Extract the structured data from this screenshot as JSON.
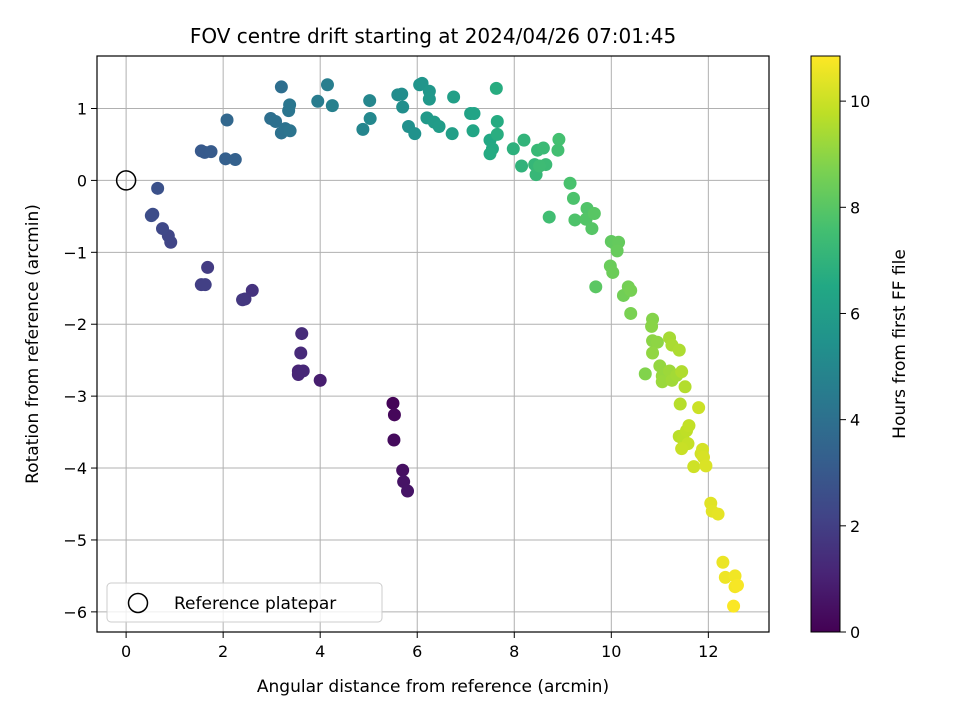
{
  "chart_data": {
    "type": "scatter",
    "title": "FOV centre drift starting at 2024/04/26 07:01:45",
    "xlabel": "Angular distance from reference (arcmin)",
    "ylabel": "Rotation from reference (arcmin)",
    "xlim": [
      -0.6,
      13.25
    ],
    "ylim": [
      -6.28,
      1.73
    ],
    "xticks": [
      0,
      2,
      4,
      6,
      8,
      10,
      12
    ],
    "yticks": [
      -6,
      -5,
      -4,
      -3,
      -2,
      -1,
      0,
      1
    ],
    "grid": true,
    "legend": {
      "position": "lower-left",
      "entries": [
        "Reference platepar"
      ]
    },
    "reference_point": {
      "x": 0,
      "y": 0,
      "marker": "open-circle"
    },
    "colorbar": {
      "label": "Hours from first FF file",
      "range": [
        0,
        10.85
      ],
      "ticks": [
        0,
        2,
        4,
        6,
        8,
        10
      ],
      "colormap": "viridis"
    },
    "points": [
      {
        "x": 5.5,
        "y": -3.1,
        "h": 0.1
      },
      {
        "x": 5.53,
        "y": -3.26,
        "h": 0.2
      },
      {
        "x": 5.52,
        "y": -3.61,
        "h": 0.3
      },
      {
        "x": 5.7,
        "y": -4.03,
        "h": 0.45
      },
      {
        "x": 5.72,
        "y": -4.19,
        "h": 0.55
      },
      {
        "x": 5.8,
        "y": -4.32,
        "h": 0.6
      },
      {
        "x": 4.0,
        "y": -2.78,
        "h": 0.9
      },
      {
        "x": 3.55,
        "y": -2.65,
        "h": 1.1
      },
      {
        "x": 3.55,
        "y": -2.7,
        "h": 1.15
      },
      {
        "x": 3.65,
        "y": -2.65,
        "h": 1.2
      },
      {
        "x": 3.6,
        "y": -2.4,
        "h": 1.3
      },
      {
        "x": 3.62,
        "y": -2.13,
        "h": 1.35
      },
      {
        "x": 2.6,
        "y": -1.53,
        "h": 1.6
      },
      {
        "x": 2.45,
        "y": -1.65,
        "h": 1.7
      },
      {
        "x": 2.4,
        "y": -1.66,
        "h": 1.75
      },
      {
        "x": 1.68,
        "y": -1.21,
        "h": 1.9
      },
      {
        "x": 1.55,
        "y": -1.45,
        "h": 2.0
      },
      {
        "x": 1.63,
        "y": -1.45,
        "h": 2.05
      },
      {
        "x": 0.92,
        "y": -0.86,
        "h": 2.2
      },
      {
        "x": 0.87,
        "y": -0.77,
        "h": 2.25
      },
      {
        "x": 0.75,
        "y": -0.67,
        "h": 2.35
      },
      {
        "x": 0.55,
        "y": -0.47,
        "h": 2.5
      },
      {
        "x": 0.52,
        "y": -0.49,
        "h": 2.55
      },
      {
        "x": 0.65,
        "y": -0.11,
        "h": 2.7
      },
      {
        "x": 1.55,
        "y": 0.41,
        "h": 3.0
      },
      {
        "x": 1.62,
        "y": 0.39,
        "h": 3.05
      },
      {
        "x": 1.75,
        "y": 0.4,
        "h": 3.1
      },
      {
        "x": 2.05,
        "y": 0.3,
        "h": 3.3
      },
      {
        "x": 2.25,
        "y": 0.29,
        "h": 3.35
      },
      {
        "x": 2.08,
        "y": 0.84,
        "h": 3.6
      },
      {
        "x": 3.2,
        "y": 1.3,
        "h": 3.9
      },
      {
        "x": 2.98,
        "y": 0.86,
        "h": 3.95
      },
      {
        "x": 3.08,
        "y": 0.82,
        "h": 4.0
      },
      {
        "x": 3.2,
        "y": 0.66,
        "h": 4.05
      },
      {
        "x": 3.28,
        "y": 0.72,
        "h": 4.1
      },
      {
        "x": 3.38,
        "y": 0.69,
        "h": 4.15
      },
      {
        "x": 3.35,
        "y": 0.97,
        "h": 4.2
      },
      {
        "x": 3.37,
        "y": 1.05,
        "h": 4.25
      },
      {
        "x": 3.95,
        "y": 1.1,
        "h": 4.5
      },
      {
        "x": 4.15,
        "y": 1.33,
        "h": 4.6
      },
      {
        "x": 4.25,
        "y": 1.04,
        "h": 4.7
      },
      {
        "x": 4.88,
        "y": 0.71,
        "h": 4.9
      },
      {
        "x": 5.02,
        "y": 1.11,
        "h": 5.0
      },
      {
        "x": 5.03,
        "y": 0.86,
        "h": 5.05
      },
      {
        "x": 5.6,
        "y": 1.19,
        "h": 5.2
      },
      {
        "x": 5.68,
        "y": 1.2,
        "h": 5.25
      },
      {
        "x": 5.7,
        "y": 1.02,
        "h": 5.3
      },
      {
        "x": 5.82,
        "y": 0.75,
        "h": 5.4
      },
      {
        "x": 5.95,
        "y": 0.65,
        "h": 5.45
      },
      {
        "x": 6.05,
        "y": 1.33,
        "h": 5.55
      },
      {
        "x": 6.1,
        "y": 1.35,
        "h": 5.6
      },
      {
        "x": 6.25,
        "y": 1.24,
        "h": 5.7
      },
      {
        "x": 6.25,
        "y": 1.13,
        "h": 5.75
      },
      {
        "x": 6.2,
        "y": 0.87,
        "h": 5.8
      },
      {
        "x": 6.35,
        "y": 0.81,
        "h": 5.9
      },
      {
        "x": 6.45,
        "y": 0.75,
        "h": 5.95
      },
      {
        "x": 6.72,
        "y": 0.65,
        "h": 6.05
      },
      {
        "x": 6.75,
        "y": 1.16,
        "h": 6.1
      },
      {
        "x": 7.1,
        "y": 0.93,
        "h": 6.25
      },
      {
        "x": 7.17,
        "y": 0.93,
        "h": 6.3
      },
      {
        "x": 7.15,
        "y": 0.69,
        "h": 6.35
      },
      {
        "x": 7.5,
        "y": 0.56,
        "h": 6.5
      },
      {
        "x": 7.55,
        "y": 0.44,
        "h": 6.55
      },
      {
        "x": 7.5,
        "y": 0.37,
        "h": 6.6
      },
      {
        "x": 7.65,
        "y": 0.82,
        "h": 6.65
      },
      {
        "x": 7.63,
        "y": 1.28,
        "h": 6.7
      },
      {
        "x": 7.65,
        "y": 0.64,
        "h": 6.75
      },
      {
        "x": 7.98,
        "y": 0.44,
        "h": 6.9
      },
      {
        "x": 8.15,
        "y": 0.2,
        "h": 7.0
      },
      {
        "x": 8.2,
        "y": 0.56,
        "h": 7.05
      },
      {
        "x": 8.42,
        "y": 0.22,
        "h": 7.15
      },
      {
        "x": 8.45,
        "y": 0.08,
        "h": 7.2
      },
      {
        "x": 8.48,
        "y": 0.42,
        "h": 7.25
      },
      {
        "x": 8.6,
        "y": 0.45,
        "h": 7.3
      },
      {
        "x": 8.65,
        "y": 0.22,
        "h": 7.35
      },
      {
        "x": 8.52,
        "y": 0.2,
        "h": 7.4
      },
      {
        "x": 8.72,
        "y": -0.51,
        "h": 7.5
      },
      {
        "x": 8.9,
        "y": 0.42,
        "h": 7.55
      },
      {
        "x": 8.92,
        "y": 0.57,
        "h": 7.6
      },
      {
        "x": 9.15,
        "y": -0.04,
        "h": 7.7
      },
      {
        "x": 9.22,
        "y": -0.25,
        "h": 7.75
      },
      {
        "x": 9.25,
        "y": -0.55,
        "h": 7.8
      },
      {
        "x": 9.5,
        "y": -0.39,
        "h": 7.85
      },
      {
        "x": 9.48,
        "y": -0.54,
        "h": 7.9
      },
      {
        "x": 9.6,
        "y": -0.67,
        "h": 7.95
      },
      {
        "x": 9.65,
        "y": -0.46,
        "h": 8.0
      },
      {
        "x": 9.68,
        "y": -1.48,
        "h": 8.05
      },
      {
        "x": 10.0,
        "y": -0.85,
        "h": 8.15
      },
      {
        "x": 10.05,
        "y": -0.87,
        "h": 8.2
      },
      {
        "x": 10.15,
        "y": -0.86,
        "h": 8.25
      },
      {
        "x": 10.12,
        "y": -0.98,
        "h": 8.3
      },
      {
        "x": 9.98,
        "y": -1.19,
        "h": 8.35
      },
      {
        "x": 10.03,
        "y": -1.28,
        "h": 8.4
      },
      {
        "x": 10.25,
        "y": -1.6,
        "h": 8.5
      },
      {
        "x": 10.35,
        "y": -1.48,
        "h": 8.55
      },
      {
        "x": 10.4,
        "y": -1.53,
        "h": 8.6
      },
      {
        "x": 10.4,
        "y": -1.85,
        "h": 8.65
      },
      {
        "x": 10.7,
        "y": -2.69,
        "h": 8.8
      },
      {
        "x": 10.85,
        "y": -1.93,
        "h": 8.85
      },
      {
        "x": 10.83,
        "y": -2.03,
        "h": 8.9
      },
      {
        "x": 10.85,
        "y": -2.23,
        "h": 8.95
      },
      {
        "x": 10.95,
        "y": -2.25,
        "h": 9.0
      },
      {
        "x": 10.85,
        "y": -2.4,
        "h": 9.05
      },
      {
        "x": 11.0,
        "y": -2.58,
        "h": 9.1
      },
      {
        "x": 11.05,
        "y": -2.72,
        "h": 9.15
      },
      {
        "x": 11.05,
        "y": -2.8,
        "h": 9.2
      },
      {
        "x": 11.2,
        "y": -2.65,
        "h": 9.25
      },
      {
        "x": 11.25,
        "y": -2.78,
        "h": 9.3
      },
      {
        "x": 11.35,
        "y": -2.71,
        "h": 9.35
      },
      {
        "x": 11.2,
        "y": -2.19,
        "h": 9.4
      },
      {
        "x": 11.25,
        "y": -2.29,
        "h": 9.45
      },
      {
        "x": 11.4,
        "y": -2.36,
        "h": 9.5
      },
      {
        "x": 11.45,
        "y": -2.66,
        "h": 9.55
      },
      {
        "x": 11.52,
        "y": -2.87,
        "h": 9.6
      },
      {
        "x": 11.42,
        "y": -3.11,
        "h": 9.65
      },
      {
        "x": 11.4,
        "y": -3.56,
        "h": 9.7
      },
      {
        "x": 11.48,
        "y": -3.6,
        "h": 9.75
      },
      {
        "x": 11.55,
        "y": -3.48,
        "h": 9.8
      },
      {
        "x": 11.6,
        "y": -3.41,
        "h": 9.85
      },
      {
        "x": 11.58,
        "y": -3.66,
        "h": 9.9
      },
      {
        "x": 11.45,
        "y": -3.73,
        "h": 9.95
      },
      {
        "x": 11.8,
        "y": -3.16,
        "h": 10.0
      },
      {
        "x": 11.7,
        "y": -3.98,
        "h": 10.05
      },
      {
        "x": 11.85,
        "y": -3.8,
        "h": 10.1
      },
      {
        "x": 11.88,
        "y": -3.74,
        "h": 10.15
      },
      {
        "x": 11.9,
        "y": -3.85,
        "h": 10.2
      },
      {
        "x": 11.95,
        "y": -3.97,
        "h": 10.25
      },
      {
        "x": 12.05,
        "y": -4.49,
        "h": 10.35
      },
      {
        "x": 12.08,
        "y": -4.6,
        "h": 10.4
      },
      {
        "x": 12.2,
        "y": -4.64,
        "h": 10.45
      },
      {
        "x": 12.3,
        "y": -5.31,
        "h": 10.55
      },
      {
        "x": 12.35,
        "y": -5.52,
        "h": 10.6
      },
      {
        "x": 12.55,
        "y": -5.5,
        "h": 10.65
      },
      {
        "x": 12.55,
        "y": -5.65,
        "h": 10.7
      },
      {
        "x": 12.6,
        "y": -5.63,
        "h": 10.75
      },
      {
        "x": 12.52,
        "y": -5.92,
        "h": 10.8
      }
    ]
  }
}
